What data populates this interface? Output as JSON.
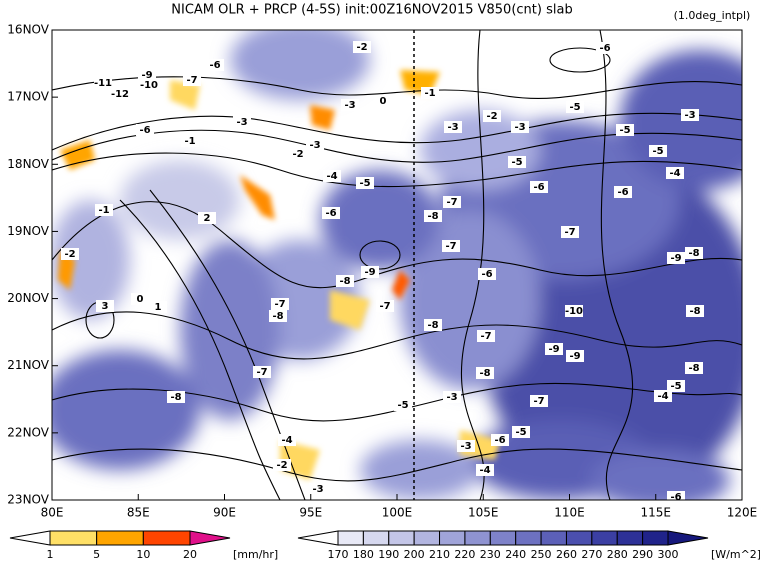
{
  "chart_data": {
    "type": "hovmoller",
    "title": "NICAM  OLR + PRCP (4-5S) init:00Z16NOV2015 V850(cnt) slab",
    "note": "(1.0deg_intpl)",
    "xlim": [
      80,
      120
    ],
    "xticks": [
      {
        "value": 80,
        "label": "80E"
      },
      {
        "value": 85,
        "label": "85E"
      },
      {
        "value": 90,
        "label": "90E"
      },
      {
        "value": 95,
        "label": "95E"
      },
      {
        "value": 100,
        "label": "100E"
      },
      {
        "value": 105,
        "label": "105E"
      },
      {
        "value": 110,
        "label": "110E"
      },
      {
        "value": 115,
        "label": "115E"
      },
      {
        "value": 120,
        "label": "120E"
      }
    ],
    "categories": [
      "16NOV",
      "17NOV",
      "18NOV",
      "19NOV",
      "20NOV",
      "21NOV",
      "22NOV",
      "23NOV"
    ],
    "contour_labels": [
      -2,
      -6,
      -6,
      -9,
      -7,
      -11,
      -10,
      -12,
      -1,
      0,
      -3,
      -5,
      -2,
      -3,
      -6,
      -3,
      -3,
      -5,
      -3,
      -1,
      -3,
      -5,
      -2,
      -5,
      -4,
      -4,
      -5,
      -6,
      -6,
      -7,
      -1,
      2,
      -6,
      -8,
      -7,
      -7,
      -9,
      -8,
      -2,
      -9,
      -6,
      -8,
      -7,
      3,
      0,
      1,
      -8,
      -7,
      -10,
      -8,
      -8,
      -7,
      -9,
      -9,
      -7,
      -8,
      -8,
      -5,
      -8,
      -4,
      -3,
      -7,
      -5,
      -5,
      -6,
      -4,
      -3,
      -2,
      -4,
      -3,
      -6
    ],
    "precip_colorbar": {
      "levels": [
        1,
        5,
        10,
        20
      ],
      "colors": [
        "#ffffff",
        "#ffe066",
        "#ffa500",
        "#ff4500",
        "#e0108a"
      ],
      "units": "[mm/hr]"
    },
    "olr_colorbar": {
      "levels": [
        170,
        180,
        190,
        200,
        210,
        220,
        230,
        240,
        250,
        260,
        270,
        280,
        290,
        300
      ],
      "colors": [
        "#ffffff",
        "#e8e9f6",
        "#d6d8ef",
        "#c4c6e8",
        "#b2b5e0",
        "#a0a4d9",
        "#8f93d1",
        "#7e82c9",
        "#6d71c1",
        "#5c60b8",
        "#4b4fae",
        "#3b3fa3",
        "#2d3197",
        "#20238a",
        "#16187c"
      ],
      "units": "[W/m^2]"
    }
  }
}
